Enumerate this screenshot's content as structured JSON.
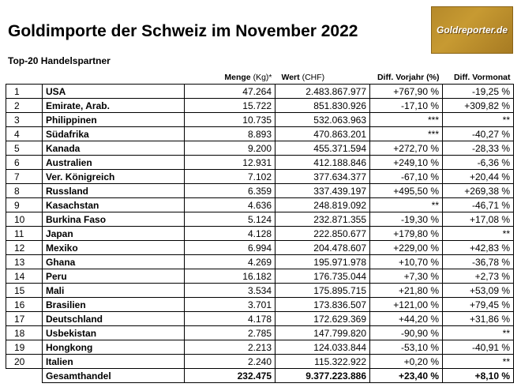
{
  "title": "Goldimporte der Schweiz im November 2022",
  "subtitle": "Top-20 Handelspartner",
  "logo_text": "Goldreporter.de",
  "headers": {
    "menge_bold": "Menge",
    "menge_unit": " (Kg)*",
    "wert_bold": "Wert",
    "wert_unit": " (CHF)",
    "vorjahr": "Diff. Vorjahr (%)",
    "vormonat": "Diff. Vormonat"
  },
  "rows": [
    {
      "rank": "1",
      "country": "USA",
      "menge": "47.264",
      "wert": "2.483.867.977",
      "vorjahr": "+767,90 %",
      "vormonat": "-19,25 %"
    },
    {
      "rank": "2",
      "country": "Emirate, Arab.",
      "menge": "15.722",
      "wert": "851.830.926",
      "vorjahr": "-17,10 %",
      "vormonat": "+309,82 %"
    },
    {
      "rank": "3",
      "country": "Philippinen",
      "menge": "10.735",
      "wert": "532.063.963",
      "vorjahr": "***",
      "vormonat": "**"
    },
    {
      "rank": "4",
      "country": "Südafrika",
      "menge": "8.893",
      "wert": "470.863.201",
      "vorjahr": "***",
      "vormonat": "-40,27 %"
    },
    {
      "rank": "5",
      "country": "Kanada",
      "menge": "9.200",
      "wert": "455.371.594",
      "vorjahr": "+272,70 %",
      "vormonat": "-28,33 %"
    },
    {
      "rank": "6",
      "country": "Australien",
      "menge": "12.931",
      "wert": "412.188.846",
      "vorjahr": "+249,10 %",
      "vormonat": "-6,36 %"
    },
    {
      "rank": "7",
      "country": "Ver. Königreich",
      "menge": "7.102",
      "wert": "377.634.377",
      "vorjahr": "-67,10 %",
      "vormonat": "+20,44 %"
    },
    {
      "rank": "8",
      "country": "Russland",
      "menge": "6.359",
      "wert": "337.439.197",
      "vorjahr": "+495,50 %",
      "vormonat": "+269,38 %"
    },
    {
      "rank": "9",
      "country": "Kasachstan",
      "menge": "4.636",
      "wert": "248.819.092",
      "vorjahr": "**",
      "vormonat": "-46,71 %"
    },
    {
      "rank": "10",
      "country": "Burkina Faso",
      "menge": "5.124",
      "wert": "232.871.355",
      "vorjahr": "-19,30 %",
      "vormonat": "+17,08 %"
    },
    {
      "rank": "11",
      "country": "Japan",
      "menge": "4.128",
      "wert": "222.850.677",
      "vorjahr": "+179,80 %",
      "vormonat": "**"
    },
    {
      "rank": "12",
      "country": "Mexiko",
      "menge": "6.994",
      "wert": "204.478.607",
      "vorjahr": "+229,00 %",
      "vormonat": "+42,83 %"
    },
    {
      "rank": "13",
      "country": "Ghana",
      "menge": "4.269",
      "wert": "195.971.978",
      "vorjahr": "+10,70 %",
      "vormonat": "-36,78 %"
    },
    {
      "rank": "14",
      "country": "Peru",
      "menge": "16.182",
      "wert": "176.735.044",
      "vorjahr": "+7,30 %",
      "vormonat": "+2,73 %"
    },
    {
      "rank": "15",
      "country": "Mali",
      "menge": "3.534",
      "wert": "175.895.715",
      "vorjahr": "+21,80 %",
      "vormonat": "+53,09 %"
    },
    {
      "rank": "16",
      "country": "Brasilien",
      "menge": "3.701",
      "wert": "173.836.507",
      "vorjahr": "+121,00 %",
      "vormonat": "+79,45 %"
    },
    {
      "rank": "17",
      "country": "Deutschland",
      "menge": "4.178",
      "wert": "172.629.369",
      "vorjahr": "+44,20 %",
      "vormonat": "+31,86 %"
    },
    {
      "rank": "18",
      "country": "Usbekistan",
      "menge": "2.785",
      "wert": "147.799.820",
      "vorjahr": "-90,90 %",
      "vormonat": "**"
    },
    {
      "rank": "19",
      "country": "Hongkong",
      "menge": "2.213",
      "wert": "124.033.844",
      "vorjahr": "-53,10 %",
      "vormonat": "-40,91 %"
    },
    {
      "rank": "20",
      "country": "Italien",
      "menge": "2.240",
      "wert": "115.322.922",
      "vorjahr": "+0,20 %",
      "vormonat": "**"
    }
  ],
  "total": {
    "label": "Gesamthandel",
    "menge": "232.475",
    "wert": "9.377.223.886",
    "vorjahr": "+23,40 %",
    "vormonat": "+8,10 %"
  }
}
